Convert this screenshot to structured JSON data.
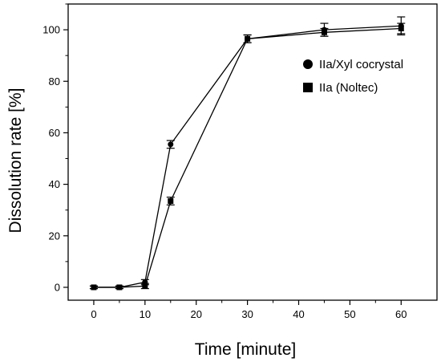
{
  "chart_data": {
    "type": "line",
    "xlabel": "Time [minute]",
    "ylabel": "Dissolution rate [%]",
    "xlim": [
      -5,
      67
    ],
    "ylim": [
      -5,
      110
    ],
    "xticks": [
      0,
      10,
      20,
      30,
      40,
      50,
      60
    ],
    "yticks": [
      0,
      20,
      40,
      60,
      80,
      100
    ],
    "grid": false,
    "legend_position": "top-right",
    "series": [
      {
        "name": "IIa/Xyl cocrystal",
        "marker": "circle",
        "color": "#000000",
        "x": [
          0,
          5,
          10,
          15,
          30,
          45,
          60
        ],
        "y": [
          0,
          0,
          2,
          55.5,
          96.5,
          100,
          101.5
        ],
        "err": [
          0.5,
          0.5,
          1,
          1.5,
          1.5,
          2.5,
          3.5
        ]
      },
      {
        "name": "IIa (Noltec)",
        "marker": "square",
        "color": "#000000",
        "x": [
          0,
          5,
          10,
          15,
          30,
          45,
          60
        ],
        "y": [
          0,
          0,
          0.5,
          33.5,
          96.5,
          99,
          100.5
        ],
        "err": [
          0.5,
          0.5,
          1,
          1.5,
          1.5,
          1.5,
          2
        ]
      }
    ]
  }
}
